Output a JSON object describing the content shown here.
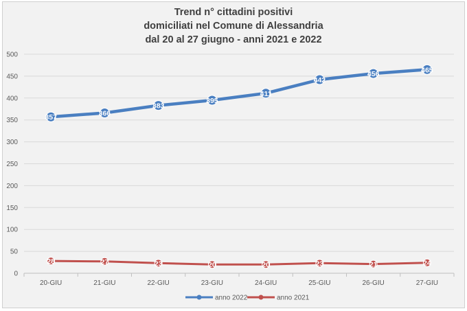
{
  "chart_data": {
    "type": "line",
    "title": [
      "Trend n° cittadini positivi",
      "domiciliati nel Comune di Alessandria",
      "dal 20 al 27 giugno - anni 2021 e 2022"
    ],
    "categories": [
      "20-GIU",
      "21-GIU",
      "22-GIU",
      "23-GIU",
      "24-GIU",
      "25-GIU",
      "26-GIU",
      "27-GIU"
    ],
    "series": [
      {
        "name": "anno 2022",
        "color": "#4a7fc1",
        "values": [
          357,
          366,
          383,
          395,
          411,
          442,
          456,
          465
        ],
        "labels": [
          "357",
          "366",
          "383",
          "395",
          "411",
          "442",
          "456",
          "465"
        ]
      },
      {
        "name": "anno 2021",
        "color": "#c0504d",
        "values": [
          28,
          27,
          23,
          20,
          20,
          23,
          21,
          24
        ],
        "labels": [
          "28",
          "27",
          "23",
          "20",
          "20",
          "23",
          "21",
          "24"
        ]
      }
    ],
    "ylim": [
      0,
      500
    ],
    "yticks": [
      0,
      50,
      100,
      150,
      200,
      250,
      300,
      350,
      400,
      450,
      500
    ],
    "grid": true,
    "legend": "bottom"
  }
}
